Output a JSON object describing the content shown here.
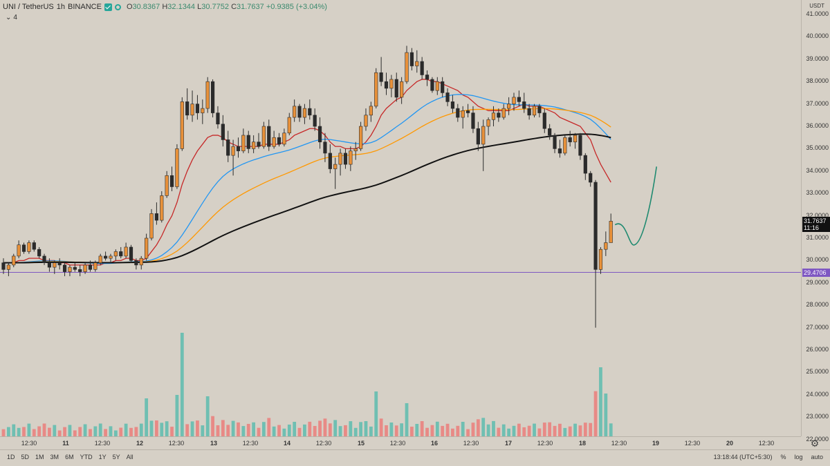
{
  "legend": {
    "symbol": "UNI / TetherUS",
    "interval": "1h",
    "exchange": "BINANCE",
    "open_label": "O",
    "open": "30.8367",
    "high_label": "H",
    "high": "32.1344",
    "low_label": "L",
    "low": "30.7752",
    "close_label": "C",
    "close": "31.7637",
    "change": "+0.9385 (+3.04%)",
    "indicator_count": "4"
  },
  "price_axis": {
    "currency": "USDT",
    "labels": [
      "41.0000",
      "40.0000",
      "39.0000",
      "38.0000",
      "37.0000",
      "36.0000",
      "35.0000",
      "34.0000",
      "33.0000",
      "32.0000",
      "31.0000",
      "30.0000",
      "29.0000",
      "28.0000",
      "27.0000",
      "26.0000",
      "25.0000",
      "24.0000",
      "23.0000",
      "22.0000"
    ],
    "last_price": "31.7637",
    "countdown": "11:16",
    "hline_price": "29.4706"
  },
  "time_axis": {
    "labels": [
      "12:30",
      "11",
      "12:30",
      "12",
      "12:30",
      "13",
      "12:30",
      "14",
      "12:30",
      "15",
      "12:30",
      "16",
      "12:30",
      "17",
      "12:30",
      "18",
      "12:30",
      "19",
      "12:30",
      "20",
      "12:30"
    ]
  },
  "bottom": {
    "ranges": [
      "1D",
      "5D",
      "1M",
      "3M",
      "6M",
      "YTD",
      "1Y",
      "5Y",
      "All"
    ],
    "clock": "13:18:44 (UTC+5:30)",
    "percent": "%",
    "log": "log",
    "auto": "auto"
  },
  "colors": {
    "up": "#e8913a",
    "down": "#2b2b2b",
    "ema_red": "#c62828",
    "ema_blue": "#2196f3",
    "ema_orange": "#ff9800",
    "ema_black": "#111111",
    "vol_up": "#6fbfb2",
    "vol_down": "#e88a86",
    "hline": "#7e57c2",
    "projection": "#1f8a70"
  },
  "chart_data": {
    "type": "candlestick",
    "y_range": [
      22.0,
      41.0
    ],
    "hline": 29.4706,
    "last_close": 31.7637,
    "candles": [
      [
        29.9,
        30.1,
        29.4,
        29.6
      ],
      [
        29.6,
        29.9,
        29.3,
        29.8
      ],
      [
        29.8,
        30.3,
        29.7,
        30.2
      ],
      [
        30.2,
        30.9,
        30.1,
        30.7
      ],
      [
        30.7,
        30.8,
        30.3,
        30.4
      ],
      [
        30.4,
        30.9,
        30.3,
        30.8
      ],
      [
        30.8,
        30.9,
        30.4,
        30.5
      ],
      [
        30.5,
        30.6,
        30.1,
        30.2
      ],
      [
        30.2,
        30.3,
        29.8,
        29.9
      ],
      [
        29.9,
        30.1,
        29.5,
        29.7
      ],
      [
        29.7,
        30.0,
        29.4,
        29.9
      ],
      [
        29.9,
        30.1,
        29.6,
        29.8
      ],
      [
        29.8,
        29.9,
        29.3,
        29.5
      ],
      [
        29.5,
        29.8,
        29.3,
        29.7
      ],
      [
        29.7,
        29.9,
        29.5,
        29.6
      ],
      [
        29.6,
        29.8,
        29.3,
        29.5
      ],
      [
        29.5,
        29.9,
        29.4,
        29.8
      ],
      [
        29.8,
        30.0,
        29.5,
        29.6
      ],
      [
        29.6,
        30.0,
        29.5,
        29.9
      ],
      [
        29.9,
        30.3,
        29.8,
        30.2
      ],
      [
        30.2,
        30.4,
        30.0,
        30.1
      ],
      [
        30.1,
        30.3,
        29.9,
        30.2
      ],
      [
        30.2,
        30.5,
        30.0,
        30.4
      ],
      [
        30.4,
        30.6,
        30.1,
        30.2
      ],
      [
        30.2,
        30.8,
        30.1,
        30.6
      ],
      [
        30.6,
        30.7,
        29.9,
        30.0
      ],
      [
        30.0,
        30.1,
        29.6,
        29.8
      ],
      [
        29.8,
        30.2,
        29.6,
        30.1
      ],
      [
        30.1,
        31.2,
        30.0,
        31.0
      ],
      [
        31.0,
        32.3,
        30.9,
        32.1
      ],
      [
        32.1,
        32.6,
        31.6,
        31.8
      ],
      [
        31.8,
        33.1,
        31.7,
        32.9
      ],
      [
        32.9,
        34.0,
        32.8,
        33.8
      ],
      [
        33.8,
        34.2,
        33.1,
        33.3
      ],
      [
        33.3,
        35.2,
        33.2,
        35.0
      ],
      [
        35.0,
        37.3,
        34.9,
        37.1
      ],
      [
        37.1,
        37.7,
        36.3,
        36.5
      ],
      [
        36.5,
        37.6,
        36.2,
        37.0
      ],
      [
        37.0,
        37.4,
        36.3,
        36.6
      ],
      [
        36.6,
        37.2,
        36.1,
        36.8
      ],
      [
        36.8,
        38.2,
        36.6,
        38.0
      ],
      [
        38.0,
        38.1,
        36.4,
        36.6
      ],
      [
        36.6,
        36.9,
        35.9,
        36.1
      ],
      [
        36.1,
        36.5,
        35.1,
        35.4
      ],
      [
        35.4,
        35.8,
        34.4,
        34.7
      ],
      [
        34.7,
        35.4,
        33.8,
        35.1
      ],
      [
        35.1,
        35.5,
        34.6,
        34.9
      ],
      [
        34.9,
        35.9,
        34.8,
        35.6
      ],
      [
        35.6,
        35.8,
        34.8,
        35.0
      ],
      [
        35.0,
        35.6,
        34.8,
        35.3
      ],
      [
        35.3,
        35.7,
        35.0,
        35.1
      ],
      [
        35.1,
        36.2,
        35.0,
        36.0
      ],
      [
        36.0,
        36.3,
        34.9,
        35.1
      ],
      [
        35.1,
        35.8,
        35.0,
        35.5
      ],
      [
        35.5,
        35.7,
        35.1,
        35.2
      ],
      [
        35.2,
        35.9,
        35.1,
        35.7
      ],
      [
        35.7,
        36.6,
        35.6,
        36.4
      ],
      [
        36.4,
        37.2,
        36.2,
        36.9
      ],
      [
        36.9,
        37.0,
        36.2,
        36.4
      ],
      [
        36.4,
        37.0,
        36.1,
        36.8
      ],
      [
        36.8,
        37.2,
        36.3,
        36.5
      ],
      [
        36.5,
        36.8,
        35.8,
        36.0
      ],
      [
        36.0,
        36.4,
        35.0,
        35.3
      ],
      [
        35.3,
        35.7,
        34.4,
        34.8
      ],
      [
        34.8,
        35.2,
        33.9,
        34.1
      ],
      [
        34.1,
        34.6,
        33.2,
        34.3
      ],
      [
        34.3,
        35.0,
        33.8,
        34.8
      ],
      [
        34.8,
        35.0,
        34.1,
        34.3
      ],
      [
        34.3,
        35.1,
        34.0,
        34.9
      ],
      [
        34.9,
        35.3,
        34.5,
        35.0
      ],
      [
        35.0,
        36.2,
        34.9,
        36.0
      ],
      [
        36.0,
        36.8,
        35.8,
        36.5
      ],
      [
        36.5,
        37.1,
        36.2,
        36.9
      ],
      [
        36.9,
        38.6,
        36.8,
        38.4
      ],
      [
        38.4,
        39.1,
        37.8,
        38.0
      ],
      [
        38.0,
        38.4,
        37.4,
        37.7
      ],
      [
        37.7,
        38.3,
        37.3,
        38.1
      ],
      [
        38.1,
        38.4,
        37.1,
        37.3
      ],
      [
        37.3,
        38.2,
        37.0,
        38.0
      ],
      [
        38.0,
        39.6,
        37.9,
        39.3
      ],
      [
        39.3,
        39.5,
        38.5,
        38.7
      ],
      [
        38.7,
        39.4,
        38.4,
        38.9
      ],
      [
        38.9,
        39.1,
        38.1,
        38.3
      ],
      [
        38.3,
        38.5,
        37.8,
        38.1
      ],
      [
        38.1,
        38.2,
        37.5,
        37.6
      ],
      [
        37.6,
        38.2,
        37.4,
        38.0
      ],
      [
        38.0,
        38.2,
        37.3,
        37.5
      ],
      [
        37.5,
        37.7,
        36.9,
        37.1
      ],
      [
        37.1,
        37.4,
        36.6,
        36.8
      ],
      [
        36.8,
        37.0,
        36.2,
        36.4
      ],
      [
        36.4,
        36.9,
        35.9,
        36.7
      ],
      [
        36.7,
        37.0,
        36.4,
        36.6
      ],
      [
        36.6,
        36.9,
        35.7,
        35.9
      ],
      [
        35.9,
        36.2,
        34.9,
        35.2
      ],
      [
        35.2,
        36.3,
        34.0,
        36.0
      ],
      [
        36.0,
        36.4,
        35.6,
        36.3
      ],
      [
        36.3,
        36.9,
        36.0,
        36.6
      ],
      [
        36.6,
        36.8,
        36.2,
        36.4
      ],
      [
        36.4,
        37.0,
        36.3,
        36.8
      ],
      [
        36.8,
        37.3,
        36.5,
        37.0
      ],
      [
        37.0,
        37.5,
        36.7,
        37.3
      ],
      [
        37.3,
        37.6,
        36.9,
        37.1
      ],
      [
        37.1,
        37.5,
        36.6,
        36.8
      ],
      [
        36.8,
        37.0,
        36.3,
        36.5
      ],
      [
        36.5,
        37.0,
        36.4,
        36.9
      ],
      [
        36.9,
        37.0,
        36.4,
        36.6
      ],
      [
        36.6,
        36.8,
        35.7,
        35.9
      ],
      [
        35.9,
        36.1,
        35.4,
        35.6
      ],
      [
        35.6,
        35.7,
        34.8,
        35.0
      ],
      [
        35.0,
        35.4,
        34.6,
        34.8
      ],
      [
        34.8,
        35.6,
        34.7,
        35.5
      ],
      [
        35.5,
        35.8,
        35.1,
        35.3
      ],
      [
        35.3,
        35.7,
        35.0,
        35.6
      ],
      [
        35.6,
        35.7,
        34.5,
        34.7
      ],
      [
        34.7,
        34.8,
        33.6,
        33.9
      ],
      [
        33.9,
        34.0,
        33.3,
        33.5
      ],
      [
        33.5,
        33.6,
        27.0,
        29.6
      ],
      [
        29.6,
        30.6,
        29.4,
        30.5
      ],
      [
        30.5,
        31.3,
        30.2,
        30.8
      ],
      [
        30.8,
        32.1,
        30.8,
        31.76
      ]
    ],
    "ema_red": [
      29.9,
      29.9,
      29.9,
      30.0,
      30.0,
      30.1,
      30.1,
      30.1,
      30.0,
      30.0,
      30.0,
      29.9,
      29.9,
      29.8,
      29.8,
      29.8,
      29.8,
      29.8,
      29.8,
      29.8,
      29.9,
      29.9,
      30.0,
      30.0,
      30.1,
      30.1,
      30.0,
      30.0,
      30.1,
      30.4,
      30.7,
      31.1,
      31.6,
      32.0,
      32.6,
      33.4,
      34.0,
      34.5,
      34.9,
      35.2,
      35.5,
      35.6,
      35.6,
      35.5,
      35.3,
      35.2,
      35.1,
      35.1,
      35.1,
      35.1,
      35.1,
      35.2,
      35.2,
      35.2,
      35.2,
      35.3,
      35.4,
      35.6,
      35.7,
      35.8,
      35.9,
      35.9,
      35.8,
      35.6,
      35.3,
      35.1,
      35.1,
      35.0,
      35.0,
      35.0,
      35.1,
      35.3,
      35.6,
      36.0,
      36.5,
      36.8,
      37.0,
      37.2,
      37.3,
      37.6,
      37.8,
      38.0,
      38.1,
      38.1,
      38.0,
      38.0,
      37.9,
      37.8,
      37.7,
      37.6,
      37.4,
      37.3,
      37.1,
      36.9,
      36.8,
      36.7,
      36.7,
      36.7,
      36.7,
      36.7,
      36.8,
      36.9,
      37.0,
      36.9,
      36.9,
      36.9,
      36.8,
      36.7,
      36.6,
      36.4,
      36.3,
      36.2,
      36.1,
      36.0,
      35.7,
      35.4,
      34.8,
      34.3,
      33.9,
      33.5
    ]
  }
}
